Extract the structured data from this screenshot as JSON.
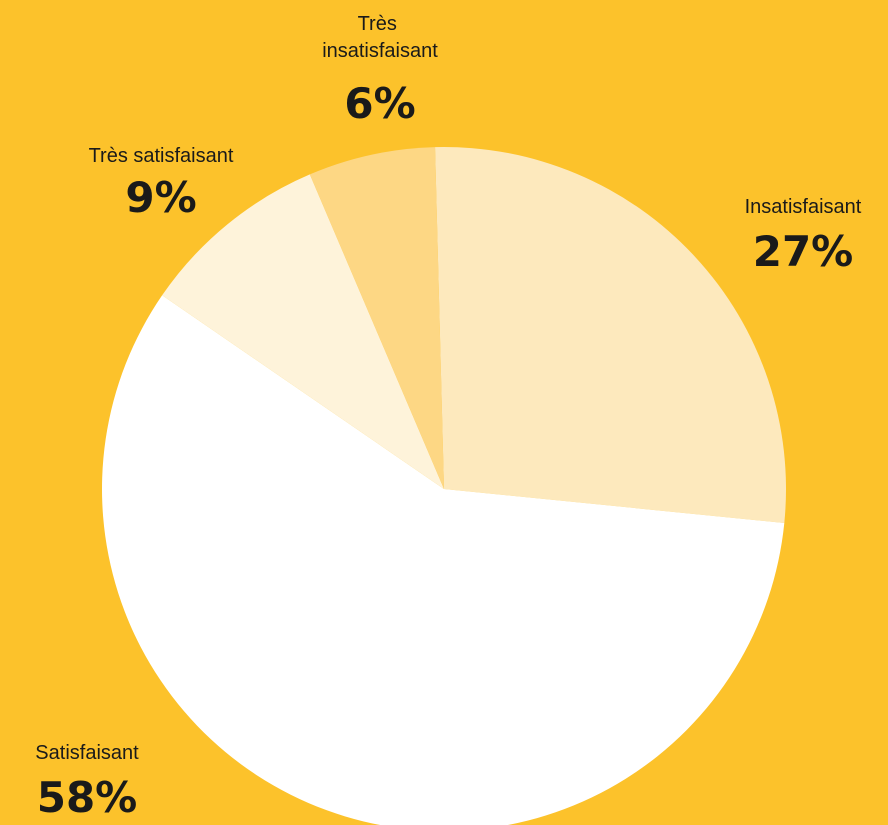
{
  "chart_data": {
    "type": "pie",
    "title": "",
    "slices": [
      {
        "label": "Insatisfaisant",
        "value": 27,
        "display": "27%",
        "color": "#FDE9BD"
      },
      {
        "label": "Satisfaisant",
        "value": 58,
        "display": "58%",
        "color": "#FFFFFF"
      },
      {
        "label": "Très satisfaisant",
        "value": 9,
        "display": "9%",
        "color": "#FEF3DA"
      },
      {
        "label": "Très insatisfaisant",
        "value": 6,
        "display": "6%",
        "color": "#FDD784"
      }
    ],
    "background": "#FCC22B"
  }
}
